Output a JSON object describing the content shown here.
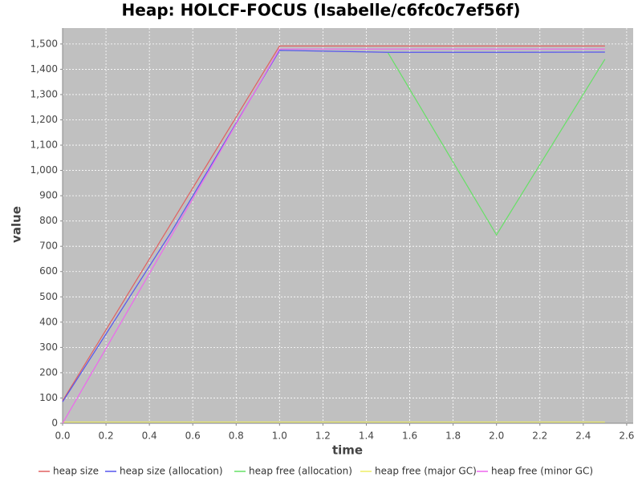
{
  "chart_data": {
    "type": "line",
    "title": "Heap: HOLCF-FOCUS (Isabelle/c6fc0c7ef56f)",
    "x_label": "time",
    "y_label": "value",
    "x": [
      0.0,
      0.5,
      1.0,
      1.5,
      2.0,
      2.5
    ],
    "series": [
      {
        "name": "heap size",
        "color": "#e06060",
        "values": [
          89,
          790,
          1492,
          1492,
          1492,
          1492
        ]
      },
      {
        "name": "heap size (allocation)",
        "color": "#5555ee",
        "values": [
          85,
          755,
          1475,
          1467,
          1467,
          1468
        ]
      },
      {
        "name": "heap free (allocation)",
        "color": "#66e066",
        "values": [
          null,
          null,
          null,
          1465,
          745,
          1440
        ]
      },
      {
        "name": "heap free (major GC)",
        "color": "#eeee66",
        "values": [
          5,
          5,
          5,
          5,
          5,
          5
        ]
      },
      {
        "name": "heap free (minor GC)",
        "color": "#ee66ee",
        "values": [
          0,
          740,
          1480,
          1480,
          1480,
          1480
        ]
      }
    ],
    "xlim": [
      0,
      2.63
    ],
    "ylim": [
      0,
      1563
    ],
    "xticks": [
      {
        "value": 0,
        "label": "0.0"
      },
      0.2,
      0.4,
      0.6,
      0.8,
      {
        "value": 1,
        "label": "1.0"
      },
      1.2,
      1.4,
      1.6,
      1.8,
      {
        "value": 2,
        "label": "2.0"
      },
      2.2,
      2.4,
      2.6
    ],
    "yticks": [
      0,
      100,
      200,
      300,
      400,
      500,
      600,
      700,
      800,
      900,
      {
        "value": 1000,
        "label": "1,000"
      },
      {
        "value": 1100,
        "label": "1,100"
      },
      {
        "value": 1200,
        "label": "1,200"
      },
      {
        "value": 1300,
        "label": "1,300"
      },
      {
        "value": 1400,
        "label": "1,400"
      },
      {
        "value": 1500,
        "label": "1,500"
      }
    ],
    "grid": true,
    "plot_background": "#c0c0c0",
    "legend": "bottom"
  }
}
